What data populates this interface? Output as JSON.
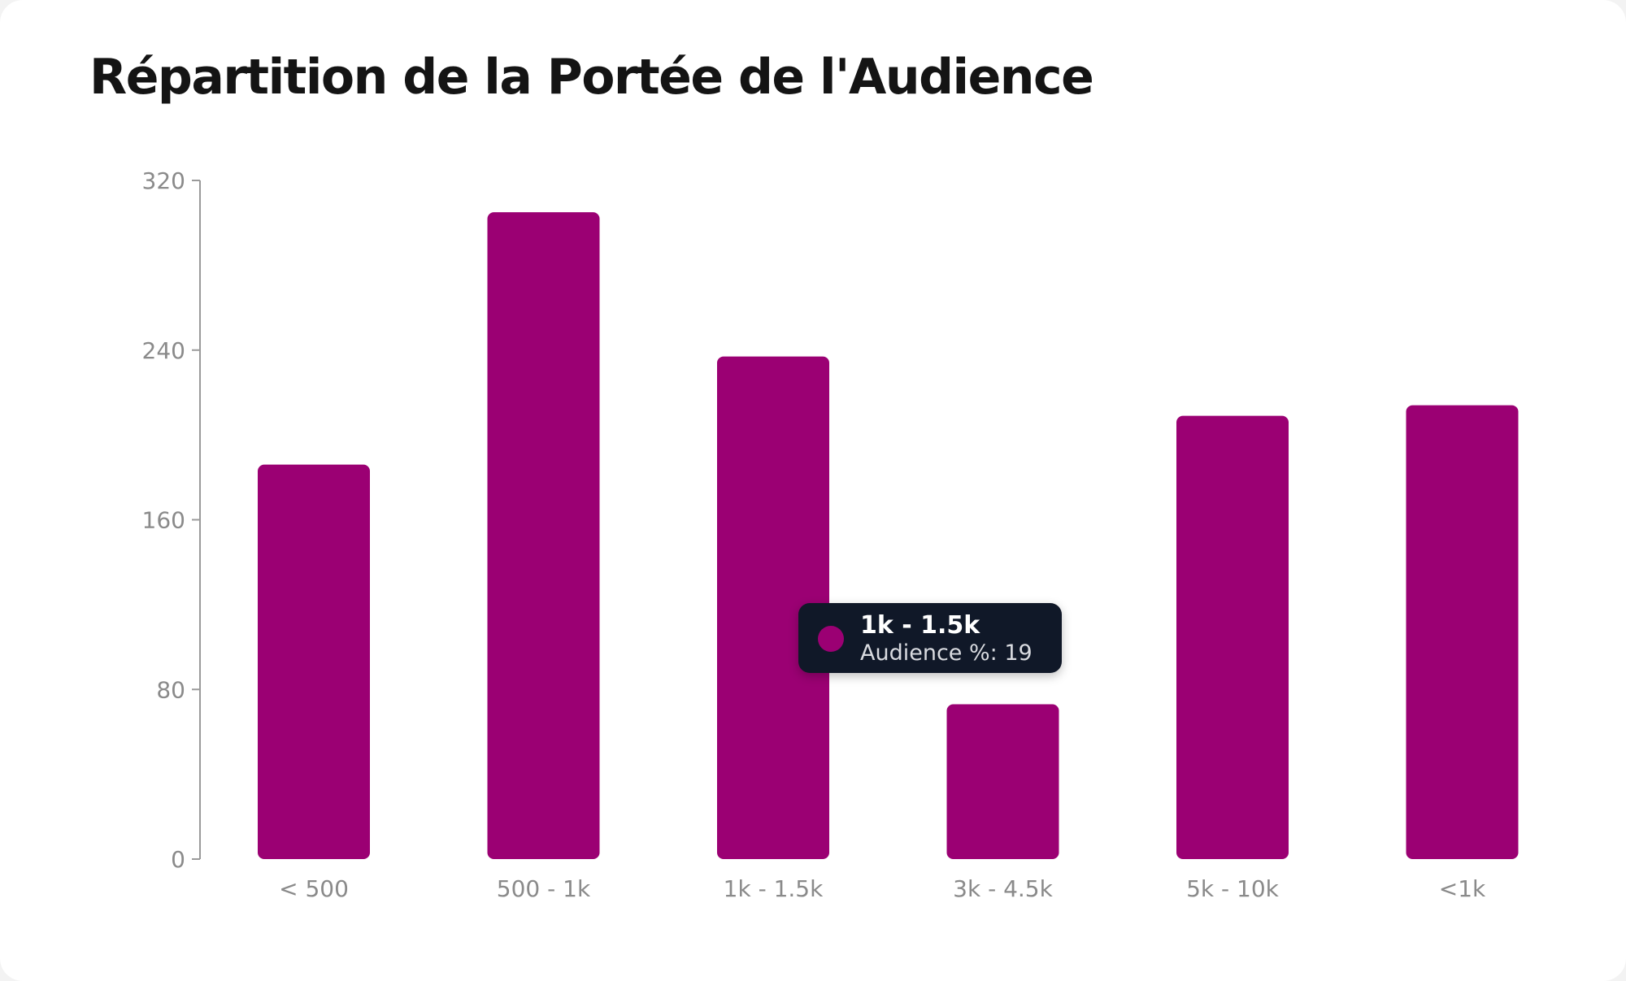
{
  "title": "Répartition de la Portée de l'Audience",
  "colors": {
    "bar": "#9b0073",
    "axis": "#9a9a9a",
    "tick_text": "#8a8a8a",
    "tooltip_bg": "#101828"
  },
  "chart_data": {
    "type": "bar",
    "title": "Répartition de la Portée de l'Audience",
    "categories": [
      "< 500",
      "500 - 1k",
      "1k - 1.5k",
      "3k - 4.5k",
      "5k - 10k",
      "<1k"
    ],
    "values": [
      186,
      305,
      237,
      73,
      209,
      214
    ],
    "ylim": [
      0,
      320
    ],
    "yticks": [
      "0",
      "80",
      "160",
      "240",
      "320"
    ],
    "grid": false,
    "xlabel": "",
    "ylabel": ""
  },
  "tooltip": {
    "title": "1k - 1.5k",
    "label": "Audience %",
    "value": "19",
    "text": "Audience %: 19"
  }
}
